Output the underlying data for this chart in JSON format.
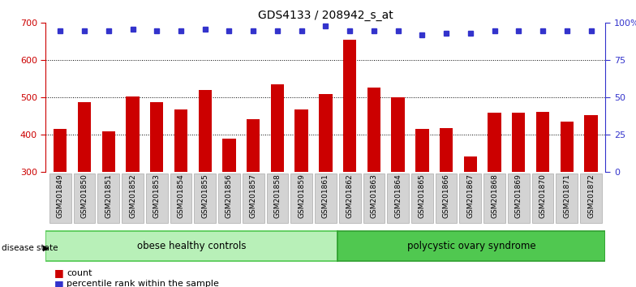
{
  "title": "GDS4133 / 208942_s_at",
  "samples": [
    "GSM201849",
    "GSM201850",
    "GSM201851",
    "GSM201852",
    "GSM201853",
    "GSM201854",
    "GSM201855",
    "GSM201856",
    "GSM201857",
    "GSM201858",
    "GSM201859",
    "GSM201861",
    "GSM201862",
    "GSM201863",
    "GSM201864",
    "GSM201865",
    "GSM201866",
    "GSM201867",
    "GSM201868",
    "GSM201869",
    "GSM201870",
    "GSM201871",
    "GSM201872"
  ],
  "counts": [
    415,
    487,
    410,
    503,
    487,
    468,
    520,
    390,
    442,
    535,
    468,
    510,
    655,
    527,
    500,
    415,
    418,
    342,
    460,
    460,
    462,
    435,
    452
  ],
  "percentiles": [
    95,
    95,
    95,
    96,
    95,
    95,
    96,
    95,
    95,
    95,
    95,
    98,
    95,
    95,
    95,
    92,
    93,
    93,
    95,
    95,
    95,
    95,
    95
  ],
  "group1_label": "obese healthy controls",
  "group1_count": 12,
  "group2_label": "polycystic ovary syndrome",
  "disease_state_label": "disease state",
  "ymin": 300,
  "ymax": 700,
  "yticks_left": [
    300,
    400,
    500,
    600,
    700
  ],
  "right_yticklabels": [
    "0",
    "25",
    "50",
    "75",
    "100%"
  ],
  "bar_color": "#cc0000",
  "dot_color": "#3333cc",
  "bg_color": "#ffffff",
  "tick_color_left": "#cc0000",
  "tick_color_right": "#3333cc",
  "xticklabel_bg": "#d3d3d3",
  "xticklabel_edge": "#aaaaaa",
  "group1_bg": "#b8f0b8",
  "group1_edge": "#50c850",
  "group2_bg": "#50c850",
  "group2_edge": "#30a030",
  "legend_red": "#cc0000",
  "legend_blue": "#3333cc"
}
